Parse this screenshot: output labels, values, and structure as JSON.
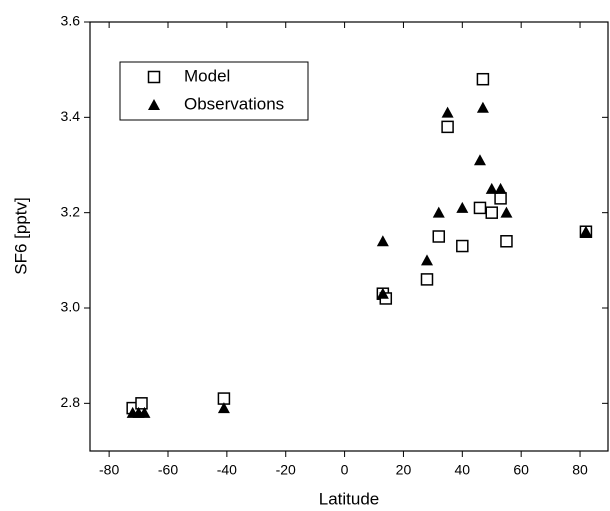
{
  "chart_data": {
    "type": "scatter",
    "x_label": "Latitude",
    "y_label": "SF6 [pptv]",
    "xlim": [
      -86.5,
      89.5
    ],
    "ylim": [
      2.7,
      3.6
    ],
    "xticks": [
      -80,
      -60,
      -40,
      -20,
      0,
      20,
      40,
      60,
      80
    ],
    "yticks": [
      2.8,
      {
        "value": 3,
        "label": "3.0"
      },
      3.2,
      3.4,
      3.6
    ],
    "legend_position": "upper left",
    "series": [
      {
        "name": "Model",
        "marker": "square",
        "color": "#000000",
        "x": [
          -72,
          -69,
          -41,
          13,
          14,
          28,
          32,
          35,
          40,
          46,
          47,
          50,
          53,
          55,
          82
        ],
        "values": [
          2.79,
          2.8,
          2.81,
          3.03,
          3.02,
          3.06,
          3.15,
          3.38,
          3.13,
          3.21,
          3.48,
          3.2,
          3.23,
          3.14,
          3.16
        ]
      },
      {
        "name": "Observations",
        "marker": "triangle",
        "color": "#000000",
        "x": [
          -72,
          -70,
          -68,
          -41,
          13,
          13,
          28,
          32,
          35,
          40,
          46,
          47,
          50,
          53,
          55,
          82
        ],
        "values": [
          2.78,
          2.78,
          2.78,
          2.79,
          3.14,
          3.03,
          3.1,
          3.2,
          3.41,
          3.21,
          3.31,
          3.42,
          3.25,
          3.25,
          3.2,
          3.16
        ]
      }
    ]
  }
}
